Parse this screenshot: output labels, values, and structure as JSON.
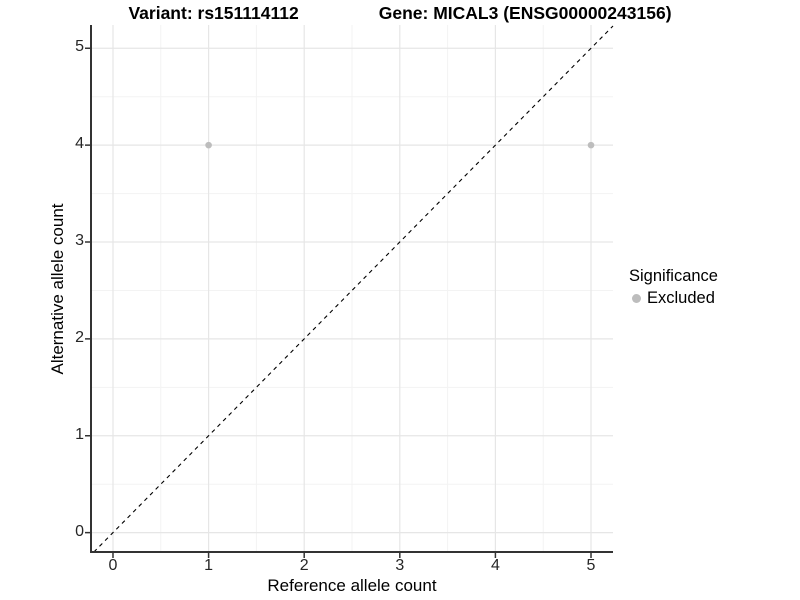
{
  "header": {
    "variant_title": "Variant: rs151114112",
    "gene_title": "Gene: MICAL3 (ENSG00000243156)"
  },
  "chart_data": {
    "type": "scatter",
    "title_left": "Variant: rs151114112",
    "title_right": "Gene: MICAL3 (ENSG00000243156)",
    "xlabel": "Reference allele count",
    "ylabel": "Alternative allele count",
    "xlim": [
      -0.23,
      5.23
    ],
    "ylim": [
      -0.2,
      5.24
    ],
    "x_ticks": [
      0,
      1,
      2,
      3,
      4,
      5
    ],
    "y_ticks": [
      0,
      1,
      2,
      3,
      4,
      5
    ],
    "grid": "major-and-minor",
    "points": [
      {
        "x": 1,
        "y": 4,
        "significance": "Excluded"
      },
      {
        "x": 5,
        "y": 4,
        "significance": "Excluded"
      }
    ],
    "identity_line": {
      "slope": 1,
      "intercept": 0,
      "style": "dashed",
      "color": "#000000"
    },
    "legend": {
      "title": "Significance",
      "position": "right",
      "items": [
        {
          "label": "Excluded",
          "color": "#bdbdbd"
        }
      ]
    },
    "colors": {
      "point": "#bdbdbd",
      "grid_major": "#e6e6e6",
      "grid_minor": "#f3f3f3",
      "axis": "#333333",
      "tick_text": "#262626"
    }
  }
}
